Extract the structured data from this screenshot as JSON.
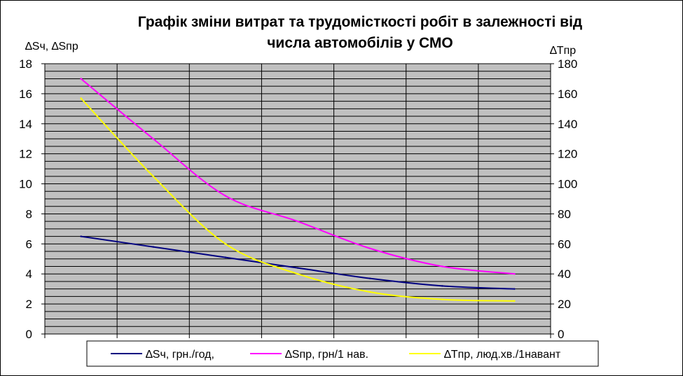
{
  "chart_data": {
    "type": "line",
    "title_line1": "Графік зміни витрат  та трудомісткості  робіт в залежності від",
    "title_line2": "числа автомобілів у СМО",
    "ylabel_left": "∆Sч, ∆Sпр",
    "ylabel_right": "∆Tпр",
    "ylim_left": [
      0,
      18
    ],
    "ylim_right": [
      0,
      180
    ],
    "yticks_left": [
      "0",
      "2",
      "4",
      "6",
      "8",
      "10",
      "12",
      "14",
      "16",
      "18"
    ],
    "yticks_right": [
      "0",
      "20",
      "40",
      "60",
      "80",
      "100",
      "120",
      "140",
      "160",
      "180"
    ],
    "x": [
      1,
      2,
      3,
      4,
      5,
      6,
      7
    ],
    "xtick_labels_visible": false,
    "grid": true,
    "plot_background": "#c0c0c0",
    "legend_position": "bottom",
    "series": [
      {
        "name": "∆Sч, грн./год,",
        "axis": "left",
        "color": "#000080",
        "values": [
          6.5,
          5.8,
          5.1,
          4.4,
          3.7,
          3.2,
          3.0
        ]
      },
      {
        "name": "∆Sпр, грн/1 нав.",
        "axis": "left",
        "color": "#ff00ff",
        "values": [
          17.0,
          13.0,
          9.2,
          7.5,
          5.7,
          4.5,
          4.0
        ]
      },
      {
        "name": "∆Tпр, люд.хв./1навант",
        "axis": "right",
        "color": "#ffff00",
        "values": [
          157,
          105,
          60,
          40,
          28,
          23,
          22
        ]
      }
    ]
  }
}
